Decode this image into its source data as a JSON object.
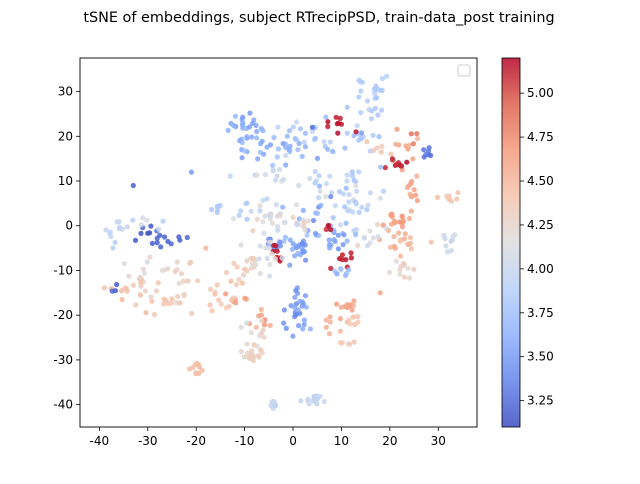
{
  "chart_data": {
    "type": "scatter",
    "title": "tSNE of embeddings, subject RTrecipPSD, train-data_post training",
    "xlabel": "",
    "ylabel": "",
    "xlim": [
      -44,
      38
    ],
    "ylim": [
      -45,
      37.5
    ],
    "x_ticks": [
      -40,
      -30,
      -20,
      -10,
      0,
      10,
      20,
      30
    ],
    "y_ticks": [
      -40,
      -30,
      -20,
      -10,
      0,
      10,
      20,
      30
    ],
    "grid": false,
    "legend": {
      "placement": "top-right",
      "entries": []
    },
    "colormap": "coolwarm",
    "colorbar": {
      "range": [
        3.1,
        5.2
      ],
      "ticks": [
        3.25,
        3.5,
        3.75,
        4.0,
        4.25,
        4.5,
        4.75,
        5.0
      ],
      "tick_labels": [
        "3.25",
        "3.50",
        "3.75",
        "4.00",
        "4.25",
        "4.50",
        "4.75",
        "5.00"
      ]
    },
    "clusters": [
      {
        "cx": -10,
        "cy": 21.5,
        "sx": 1.7,
        "sy": 2.4,
        "n": 28,
        "v": 3.6,
        "vs": 0.06
      },
      {
        "cx": -4,
        "cy": 17,
        "sx": 3.5,
        "sy": 1.7,
        "n": 22,
        "v": 3.65,
        "vs": 0.08
      },
      {
        "cx": 3,
        "cy": 19,
        "sx": 4.0,
        "sy": 2.8,
        "n": 26,
        "v": 3.75,
        "vs": 0.12
      },
      {
        "cx": 9,
        "cy": 23,
        "sx": 1.3,
        "sy": 1.0,
        "n": 8,
        "v": 5.15,
        "vs": 0.03
      },
      {
        "cx": 16,
        "cy": 29,
        "sx": 2.2,
        "sy": 3.0,
        "n": 24,
        "v": 3.85,
        "vs": 0.05
      },
      {
        "cx": 14,
        "cy": 20,
        "sx": 2.2,
        "sy": 1.6,
        "n": 12,
        "v": 3.8,
        "vs": 0.08
      },
      {
        "cx": 18,
        "cy": 17,
        "sx": 1.3,
        "sy": 0.8,
        "n": 6,
        "v": 4.4,
        "vs": 0.04
      },
      {
        "cx": 24,
        "cy": 18.5,
        "sx": 1.4,
        "sy": 2.6,
        "n": 12,
        "v": 4.6,
        "vs": 0.1
      },
      {
        "cx": 28,
        "cy": 16,
        "sx": 0.6,
        "sy": 0.8,
        "n": 6,
        "v": 3.3,
        "vs": 0.03
      },
      {
        "cx": 21.5,
        "cy": 13.5,
        "sx": 1.2,
        "sy": 0.7,
        "n": 10,
        "v": 5.12,
        "vs": 0.04
      },
      {
        "cx": 14,
        "cy": 11,
        "sx": 2.0,
        "sy": 1.2,
        "n": 8,
        "v": 3.85,
        "vs": 0.06
      },
      {
        "cx": 7,
        "cy": 11,
        "sx": 2.5,
        "sy": 1.0,
        "n": 8,
        "v": 3.9,
        "vs": 0.08
      },
      {
        "cx": 24.5,
        "cy": 6,
        "sx": 1.2,
        "sy": 2.2,
        "n": 14,
        "v": 4.6,
        "vs": 0.06
      },
      {
        "cx": 13,
        "cy": 7.5,
        "sx": 3.5,
        "sy": 1.5,
        "n": 14,
        "v": 3.95,
        "vs": 0.1
      },
      {
        "cx": 12,
        "cy": 3,
        "sx": 1.8,
        "sy": 2.4,
        "n": 18,
        "v": 3.9,
        "vs": 0.08
      },
      {
        "cx": 21,
        "cy": 1,
        "sx": 1.5,
        "sy": 1.4,
        "n": 14,
        "v": 4.65,
        "vs": 0.05
      },
      {
        "cx": 22,
        "cy": -3,
        "sx": 2.0,
        "sy": 1.8,
        "n": 18,
        "v": 4.5,
        "vs": 0.08
      },
      {
        "cx": 32.5,
        "cy": 6.5,
        "sx": 1.6,
        "sy": 0.7,
        "n": 8,
        "v": 4.38,
        "vs": 0.04
      },
      {
        "cx": 32,
        "cy": -4.5,
        "sx": 0.9,
        "sy": 1.6,
        "n": 10,
        "v": 4.02,
        "vs": 0.04
      },
      {
        "cx": 22,
        "cy": -10,
        "sx": 1.4,
        "sy": 1.1,
        "n": 12,
        "v": 4.25,
        "vs": 0.05
      },
      {
        "cx": 9,
        "cy": -3,
        "sx": 1.6,
        "sy": 1.3,
        "n": 14,
        "v": 3.55,
        "vs": 0.1
      },
      {
        "cx": 10.5,
        "cy": -7,
        "sx": 1.2,
        "sy": 1.0,
        "n": 8,
        "v": 5.15,
        "vs": 0.03
      },
      {
        "cx": 10,
        "cy": -10,
        "sx": 1.5,
        "sy": 0.7,
        "n": 8,
        "v": 3.75,
        "vs": 0.06
      },
      {
        "cx": 5,
        "cy": 1.5,
        "sx": 2.5,
        "sy": 2.6,
        "n": 20,
        "v": 3.6,
        "vs": 0.12
      },
      {
        "cx": 7.5,
        "cy": 0.5,
        "sx": 0.6,
        "sy": 0.8,
        "n": 4,
        "v": 5.15,
        "vs": 0.03
      },
      {
        "cx": 2,
        "cy": -6,
        "sx": 0.8,
        "sy": 1.2,
        "n": 8,
        "v": 3.5,
        "vs": 0.05
      },
      {
        "cx": 0,
        "cy": -4,
        "sx": 1.2,
        "sy": 1.2,
        "n": 12,
        "v": 3.6,
        "vs": 0.08
      },
      {
        "cx": -6,
        "cy": 11,
        "sx": 3.0,
        "sy": 1.2,
        "n": 12,
        "v": 4.0,
        "vs": 0.05
      },
      {
        "cx": -9,
        "cy": 4,
        "sx": 2.5,
        "sy": 1.5,
        "n": 10,
        "v": 3.9,
        "vs": 0.06
      },
      {
        "cx": -5,
        "cy": 1.5,
        "sx": 3.5,
        "sy": 2.2,
        "n": 24,
        "v": 4.1,
        "vs": 0.1
      },
      {
        "cx": -3.5,
        "cy": -4.5,
        "sx": 0.9,
        "sy": 1.3,
        "n": 10,
        "v": 3.45,
        "vs": 0.05
      },
      {
        "cx": -3,
        "cy": -7,
        "sx": 1.0,
        "sy": 1.5,
        "n": 8,
        "v": 5.15,
        "vs": 0.03
      },
      {
        "cx": -6,
        "cy": -7,
        "sx": 3.0,
        "sy": 2.5,
        "n": 20,
        "v": 4.15,
        "vs": 0.1
      },
      {
        "cx": 2,
        "cy": 0.5,
        "sx": 1.5,
        "sy": 1.2,
        "n": 8,
        "v": 4.2,
        "vs": 0.08
      },
      {
        "cx": 0,
        "cy": -18,
        "sx": 1.6,
        "sy": 2.3,
        "n": 22,
        "v": 3.5,
        "vs": 0.08
      },
      {
        "cx": -6,
        "cy": -20,
        "sx": 1.2,
        "sy": 1.6,
        "n": 8,
        "v": 4.6,
        "vs": 0.06
      },
      {
        "cx": -8,
        "cy": -24,
        "sx": 1.4,
        "sy": 2.8,
        "n": 16,
        "v": 4.25,
        "vs": 0.06
      },
      {
        "cx": -8,
        "cy": -29.5,
        "sx": 1.6,
        "sy": 1.0,
        "n": 12,
        "v": 4.3,
        "vs": 0.04
      },
      {
        "cx": -12,
        "cy": -16.5,
        "sx": 1.0,
        "sy": 0.8,
        "n": 6,
        "v": 4.6,
        "vs": 0.04
      },
      {
        "cx": -15,
        "cy": -17,
        "sx": 2.5,
        "sy": 1.6,
        "n": 12,
        "v": 4.35,
        "vs": 0.05
      },
      {
        "cx": -11,
        "cy": -9.5,
        "sx": 1.5,
        "sy": 2.0,
        "n": 12,
        "v": 4.35,
        "vs": 0.05
      },
      {
        "cx": -20,
        "cy": -32,
        "sx": 0.7,
        "sy": 0.7,
        "n": 10,
        "v": 4.45,
        "vs": 0.03
      },
      {
        "cx": -22,
        "cy": -11,
        "sx": 1.2,
        "sy": 2.0,
        "n": 10,
        "v": 4.3,
        "vs": 0.05
      },
      {
        "cx": -26,
        "cy": -17,
        "sx": 2.5,
        "sy": 1.2,
        "n": 12,
        "v": 4.35,
        "vs": 0.06
      },
      {
        "cx": -31,
        "cy": -14,
        "sx": 2.8,
        "sy": 2.6,
        "n": 18,
        "v": 4.35,
        "vs": 0.08
      },
      {
        "cx": -37,
        "cy": -14,
        "sx": 1.5,
        "sy": 0.8,
        "n": 8,
        "v": 4.4,
        "vs": 0.05
      },
      {
        "cx": -37,
        "cy": -14.5,
        "sx": 0.7,
        "sy": 0.6,
        "n": 3,
        "v": 3.2,
        "vs": 0.03
      },
      {
        "cx": -26,
        "cy": -3,
        "sx": 2.5,
        "sy": 1.2,
        "n": 12,
        "v": 3.2,
        "vs": 0.06
      },
      {
        "cx": -31,
        "cy": -2,
        "sx": 1.5,
        "sy": 1.4,
        "n": 6,
        "v": 3.2,
        "vs": 0.05
      },
      {
        "cx": -32,
        "cy": 0.5,
        "sx": 2.5,
        "sy": 1.0,
        "n": 8,
        "v": 4.0,
        "vs": 0.05
      },
      {
        "cx": -36.5,
        "cy": -1,
        "sx": 1.2,
        "sy": 1.8,
        "n": 10,
        "v": 3.95,
        "vs": 0.05
      },
      {
        "cx": -30,
        "cy": -9,
        "sx": 2.5,
        "sy": 1.2,
        "n": 10,
        "v": 4.2,
        "vs": 0.06
      },
      {
        "cx": -16,
        "cy": 4,
        "sx": 1.0,
        "sy": 0.6,
        "n": 5,
        "v": 3.8,
        "vs": 0.04
      },
      {
        "cx": 15,
        "cy": -3,
        "sx": 1.6,
        "sy": 2.0,
        "n": 10,
        "v": 4.1,
        "vs": 0.08
      },
      {
        "cx": 12,
        "cy": -18,
        "sx": 1.0,
        "sy": 1.2,
        "n": 12,
        "v": 4.6,
        "vs": 0.04
      },
      {
        "cx": 8,
        "cy": -21,
        "sx": 1.0,
        "sy": 1.0,
        "n": 6,
        "v": 4.55,
        "vs": 0.04
      },
      {
        "cx": 12,
        "cy": -22,
        "sx": 1.8,
        "sy": 1.0,
        "n": 8,
        "v": 4.4,
        "vs": 0.04
      },
      {
        "cx": 11,
        "cy": -26,
        "sx": 1.0,
        "sy": 0.8,
        "n": 5,
        "v": 4.35,
        "vs": 0.03
      },
      {
        "cx": -4,
        "cy": -40,
        "sx": 0.6,
        "sy": 0.5,
        "n": 8,
        "v": 4.0,
        "vs": 0.03
      },
      {
        "cx": 5,
        "cy": -39,
        "sx": 1.2,
        "sy": 0.7,
        "n": 14,
        "v": 3.98,
        "vs": 0.03
      },
      {
        "cx": 2,
        "cy": -21,
        "sx": 1.0,
        "sy": 1.5,
        "n": 6,
        "v": 3.55,
        "vs": 0.05
      }
    ],
    "extra_points": [
      {
        "x": -33,
        "y": 9,
        "v": 3.2
      },
      {
        "x": -21,
        "y": 12,
        "v": 3.5
      },
      {
        "x": 4,
        "y": 22,
        "v": 3.25
      },
      {
        "x": 13,
        "y": 21,
        "v": 5.15
      },
      {
        "x": -18,
        "y": -5,
        "v": 4.5
      },
      {
        "x": 18,
        "y": -15,
        "v": 4.6
      },
      {
        "x": 27,
        "y": 17,
        "v": 3.3
      }
    ]
  }
}
